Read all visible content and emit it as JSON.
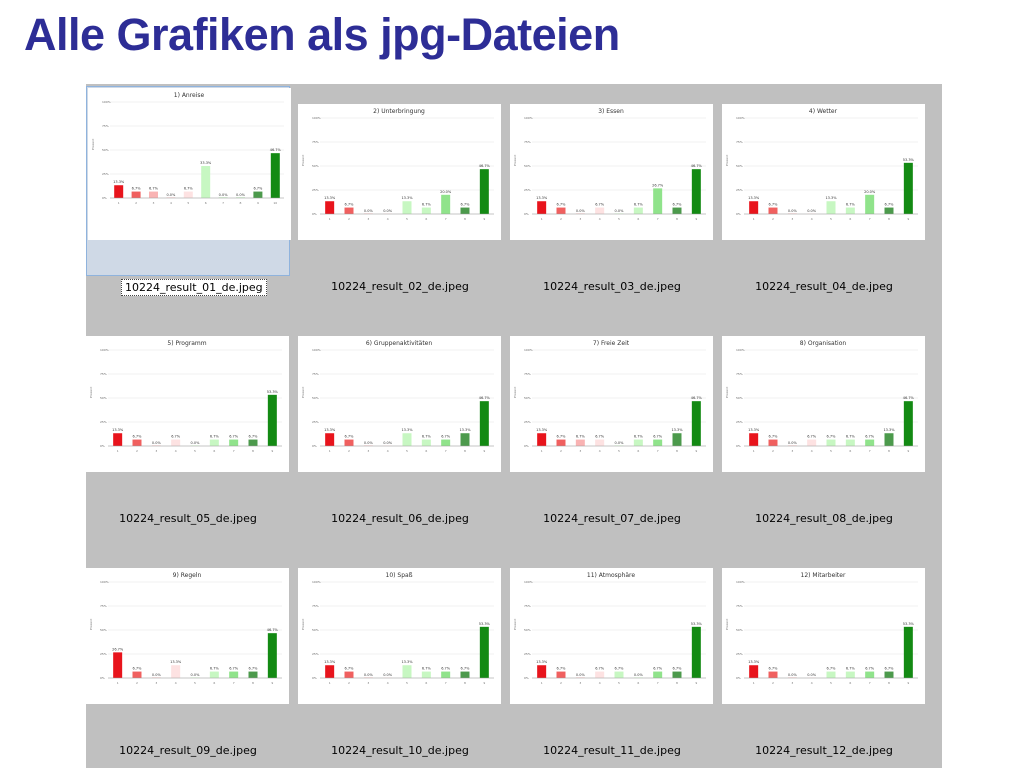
{
  "page_title": "Alle Grafiken als jpg-Dateien",
  "selected_index": 0,
  "colors": [
    "#e8141c",
    "#f0605f",
    "#f9b3b3",
    "#fde2e2",
    "#c7f7c2",
    "#90e38b",
    "#4c9a4c",
    "#138a13"
  ],
  "files": [
    {
      "filename": "10224_result_01_de.jpeg",
      "chart_data": {
        "type": "bar",
        "title": "1) Anreise",
        "values": [
          13.3,
          6.7,
          6.7,
          0.0,
          6.7,
          33.3,
          0.0,
          0.0,
          6.7,
          46.7
        ],
        "ylim": [
          0,
          100
        ]
      }
    },
    {
      "filename": "10224_result_02_de.jpeg",
      "chart_data": {
        "type": "bar",
        "title": "2) Unterbringung",
        "values": [
          13.3,
          6.7,
          0.0,
          0.0,
          13.3,
          6.7,
          20.0,
          6.7,
          46.7
        ],
        "ylim": [
          0,
          100
        ]
      }
    },
    {
      "filename": "10224_result_03_de.jpeg",
      "chart_data": {
        "type": "bar",
        "title": "3) Essen",
        "values": [
          13.3,
          6.7,
          0.0,
          6.7,
          0.0,
          6.7,
          26.7,
          6.7,
          46.7
        ],
        "ylim": [
          0,
          100
        ]
      }
    },
    {
      "filename": "10224_result_04_de.jpeg",
      "chart_data": {
        "type": "bar",
        "title": "4) Wetter",
        "values": [
          13.3,
          6.7,
          0.0,
          0.0,
          13.3,
          6.7,
          20.0,
          6.7,
          53.3
        ],
        "ylim": [
          0,
          100
        ]
      }
    },
    {
      "filename": "10224_result_05_de.jpeg",
      "chart_data": {
        "type": "bar",
        "title": "5) Programm",
        "values": [
          13.3,
          6.7,
          0.0,
          6.7,
          0.0,
          6.7,
          6.7,
          6.7,
          53.3
        ],
        "ylim": [
          0,
          100
        ]
      }
    },
    {
      "filename": "10224_result_06_de.jpeg",
      "chart_data": {
        "type": "bar",
        "title": "6) Gruppenaktivitäten",
        "values": [
          13.3,
          6.7,
          0.0,
          0.0,
          13.3,
          6.7,
          6.7,
          13.3,
          46.7
        ],
        "ylim": [
          0,
          100
        ]
      }
    },
    {
      "filename": "10224_result_07_de.jpeg",
      "chart_data": {
        "type": "bar",
        "title": "7) Freie Zeit",
        "values": [
          13.3,
          6.7,
          6.7,
          6.7,
          0.0,
          6.7,
          6.7,
          13.3,
          46.7
        ],
        "ylim": [
          0,
          100
        ]
      }
    },
    {
      "filename": "10224_result_08_de.jpeg",
      "chart_data": {
        "type": "bar",
        "title": "8) Organisation",
        "values": [
          13.3,
          6.7,
          0.0,
          6.7,
          6.7,
          6.7,
          6.7,
          13.3,
          46.7
        ],
        "ylim": [
          0,
          100
        ]
      }
    },
    {
      "filename": "10224_result_09_de.jpeg",
      "chart_data": {
        "type": "bar",
        "title": "9) Regeln",
        "values": [
          26.7,
          6.7,
          0.0,
          13.3,
          0.0,
          6.7,
          6.7,
          6.7,
          46.7
        ],
        "ylim": [
          0,
          100
        ]
      }
    },
    {
      "filename": "10224_result_10_de.jpeg",
      "chart_data": {
        "type": "bar",
        "title": "10) Spaß",
        "values": [
          13.3,
          6.7,
          0.0,
          0.0,
          13.3,
          6.7,
          6.7,
          6.7,
          53.3
        ],
        "ylim": [
          0,
          100
        ]
      }
    },
    {
      "filename": "10224_result_11_de.jpeg",
      "chart_data": {
        "type": "bar",
        "title": "11) Atmosphäre",
        "values": [
          13.3,
          6.7,
          0.0,
          6.7,
          6.7,
          0.0,
          6.7,
          6.7,
          53.3
        ],
        "ylim": [
          0,
          100
        ]
      }
    },
    {
      "filename": "10224_result_12_de.jpeg",
      "chart_data": {
        "type": "bar",
        "title": "12) Mitarbeiter",
        "values": [
          13.3,
          6.7,
          0.0,
          0.0,
          6.7,
          6.7,
          6.7,
          6.7,
          53.3
        ],
        "ylim": [
          0,
          100
        ]
      }
    }
  ]
}
